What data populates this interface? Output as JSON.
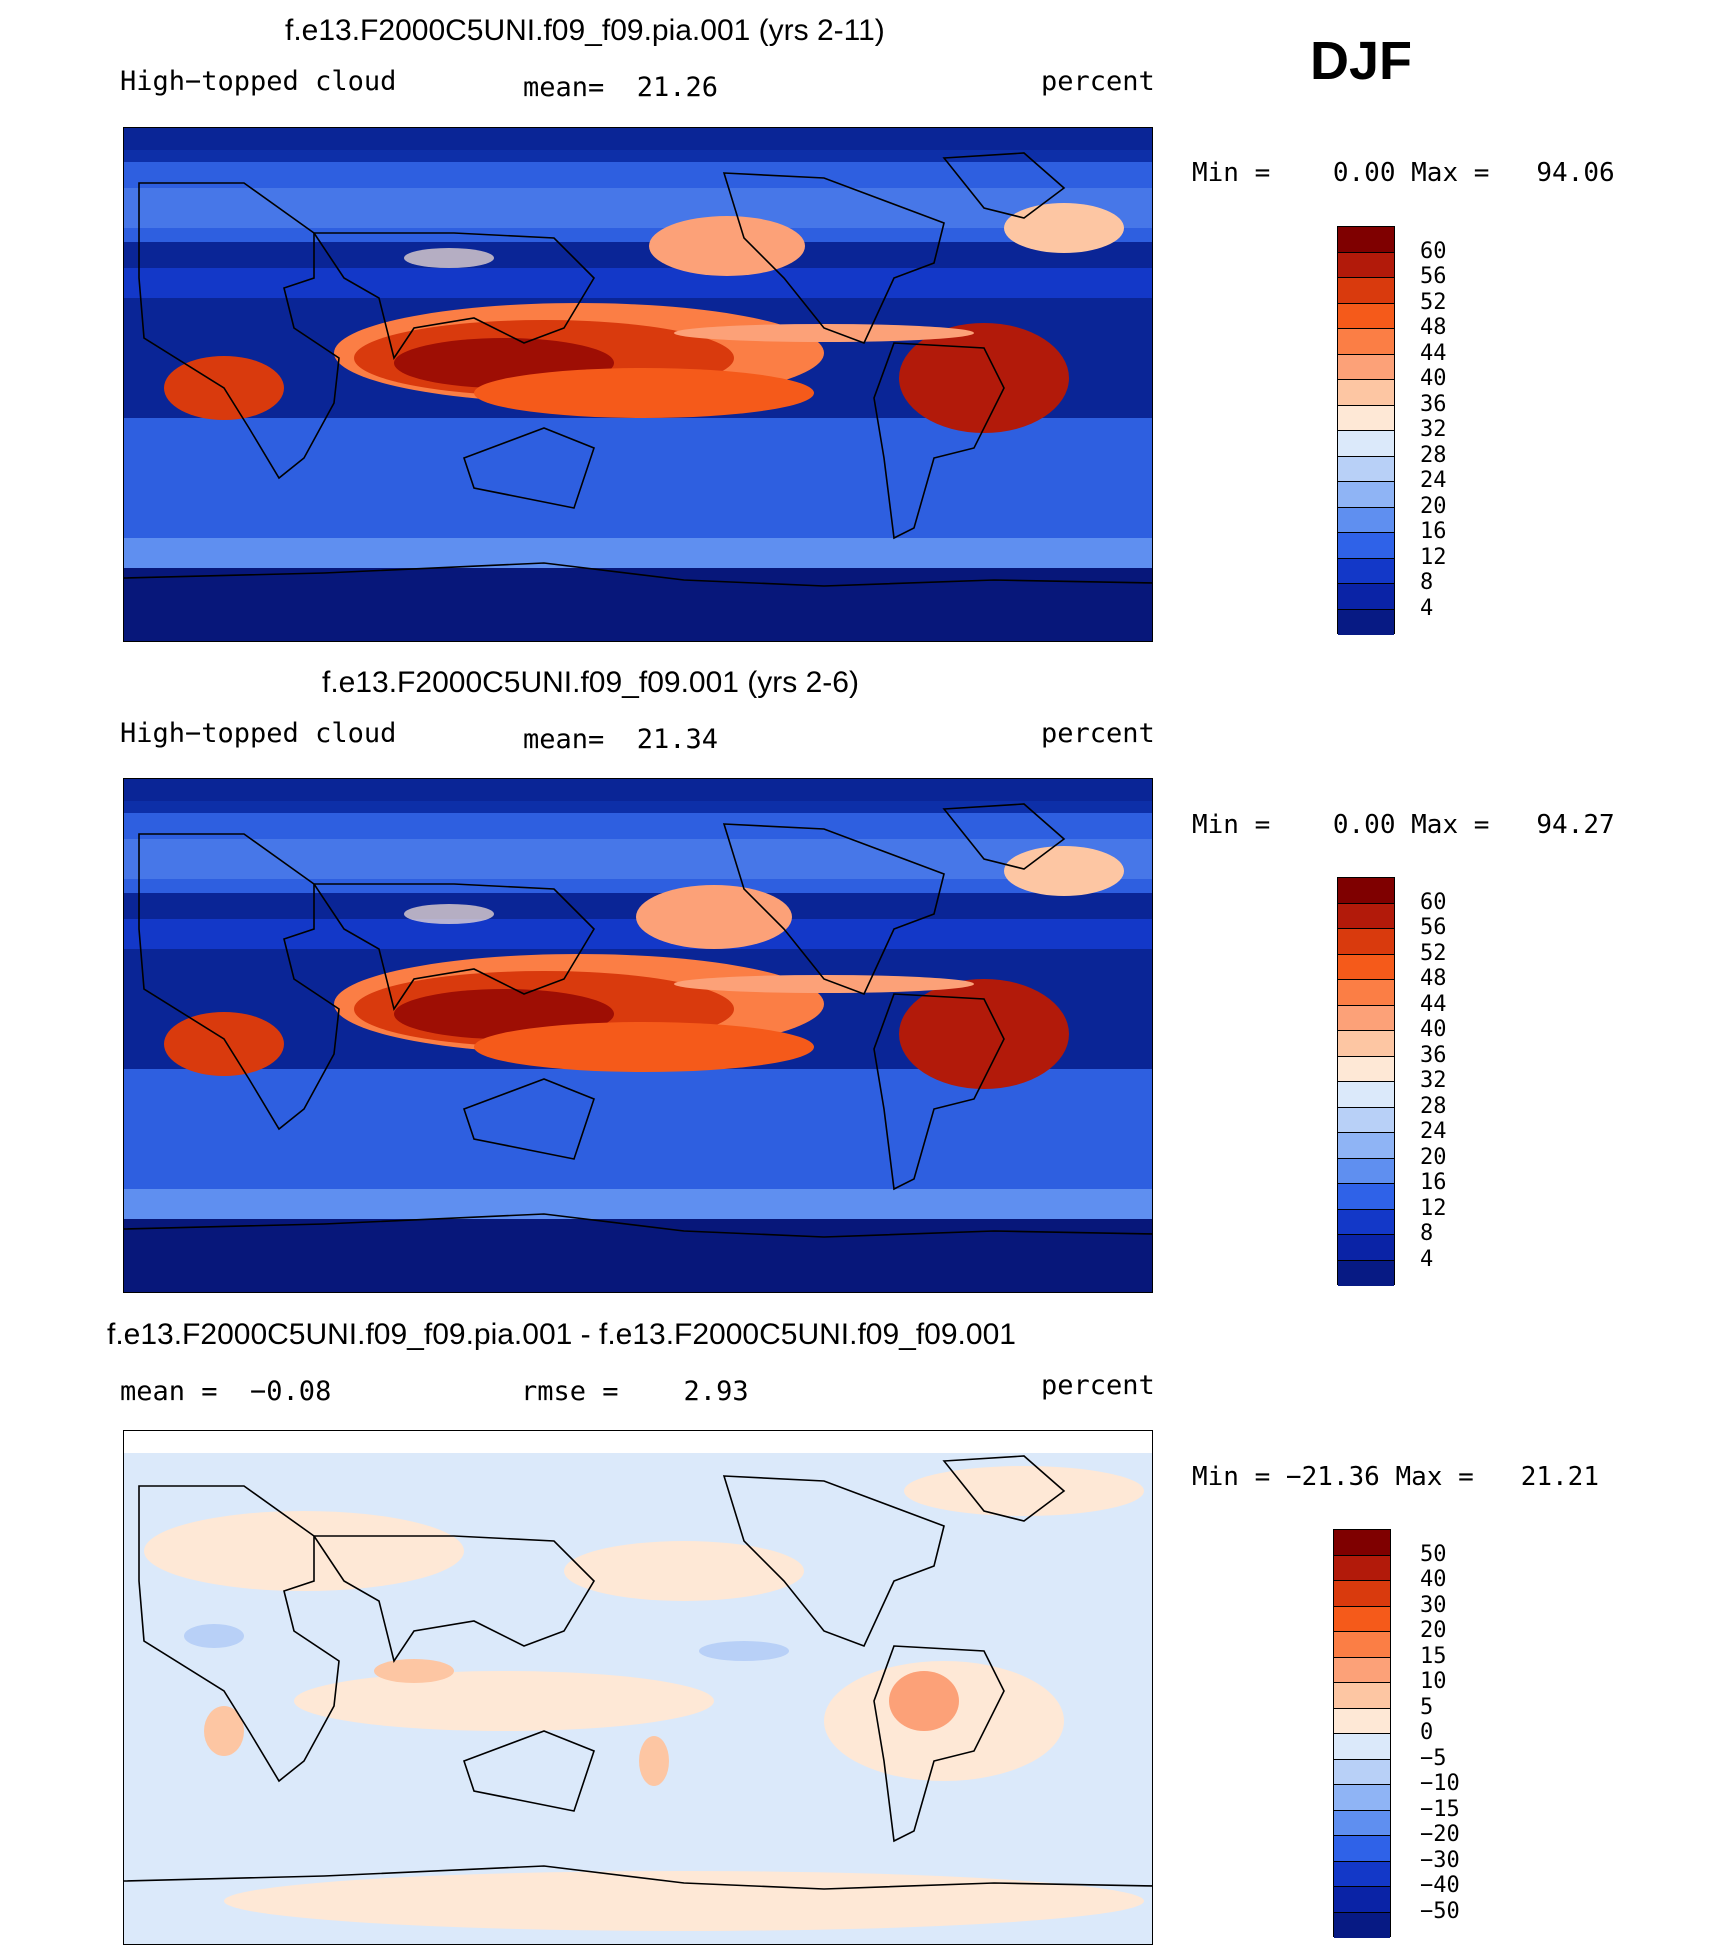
{
  "season": "DJF",
  "panels": [
    {
      "title": "f.e13.F2000C5UNI.f09_f09.pia.001 (yrs 2-11)",
      "left_label": "High−topped cloud",
      "center_label": "mean=  21.26",
      "units": "percent",
      "minmax": "Min =    0.00 Max =   94.06",
      "kind": "field",
      "colorbar": {
        "labels": [
          "60",
          "56",
          "52",
          "48",
          "44",
          "40",
          "36",
          "32",
          "28",
          "24",
          "20",
          "16",
          "12",
          "8",
          "4"
        ],
        "colors": [
          "#7f0000",
          "#b21a0a",
          "#d93a0d",
          "#f55a1a",
          "#fb7e45",
          "#fca178",
          "#fdc6a3",
          "#fee8d6",
          "#dbe9fa",
          "#b8d0f7",
          "#8fb4f5",
          "#5f8ff0",
          "#2f62e8",
          "#1338c8",
          "#0a23a6",
          "#071a84"
        ]
      }
    },
    {
      "title": "f.e13.F2000C5UNI.f09_f09.001 (yrs 2-6)",
      "left_label": "High−topped cloud",
      "center_label": "mean=  21.34",
      "units": "percent",
      "minmax": "Min =    0.00 Max =   94.27",
      "kind": "field",
      "colorbar": {
        "labels": [
          "60",
          "56",
          "52",
          "48",
          "44",
          "40",
          "36",
          "32",
          "28",
          "24",
          "20",
          "16",
          "12",
          "8",
          "4"
        ],
        "colors": [
          "#7f0000",
          "#b21a0a",
          "#d93a0d",
          "#f55a1a",
          "#fb7e45",
          "#fca178",
          "#fdc6a3",
          "#fee8d6",
          "#dbe9fa",
          "#b8d0f7",
          "#8fb4f5",
          "#5f8ff0",
          "#2f62e8",
          "#1338c8",
          "#0a23a6",
          "#071a84"
        ]
      }
    },
    {
      "title": "f.e13.F2000C5UNI.f09_f09.pia.001 - f.e13.F2000C5UNI.f09_f09.001",
      "left_label": "mean =  −0.08",
      "center_label": "rmse =    2.93",
      "units": "percent",
      "minmax": "Min = −21.36 Max =   21.21",
      "kind": "diff",
      "colorbar": {
        "labels": [
          "50",
          "40",
          "30",
          "20",
          "15",
          "10",
          "5",
          "0",
          "−5",
          "−10",
          "−15",
          "−20",
          "−30",
          "−40",
          "−50"
        ],
        "colors": [
          "#7f0000",
          "#b21a0a",
          "#d93a0d",
          "#f55a1a",
          "#fb7e45",
          "#fca178",
          "#fdc6a3",
          "#fee8d6",
          "#dbe9fa",
          "#b8d0f7",
          "#8fb4f5",
          "#5f8ff0",
          "#2f62e8",
          "#1338c8",
          "#0a23a6",
          "#071a84"
        ]
      }
    }
  ]
}
